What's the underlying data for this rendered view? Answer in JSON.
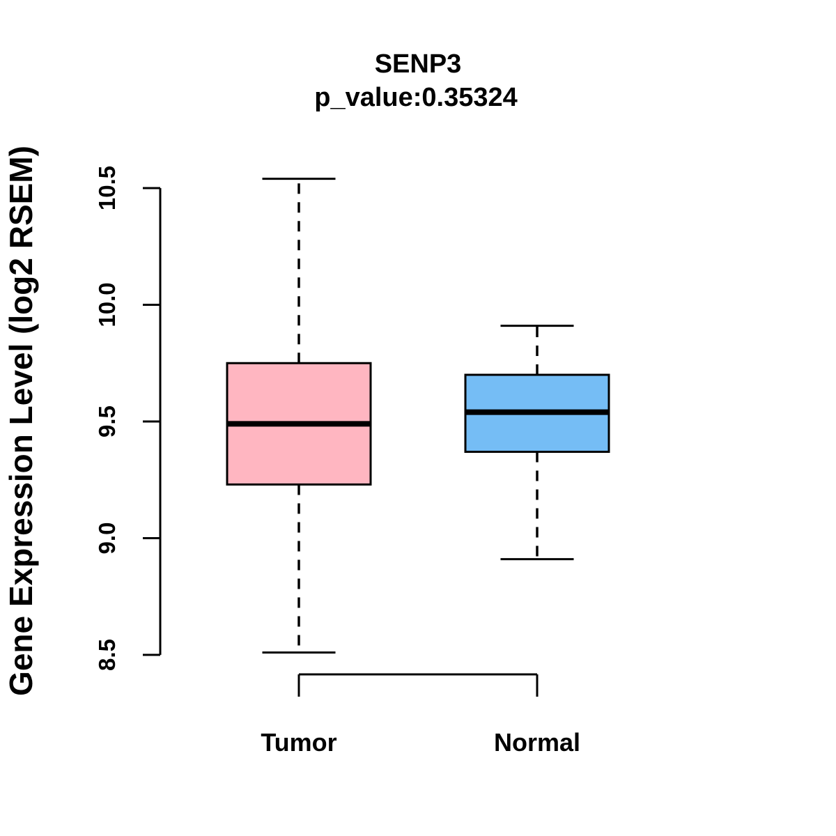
{
  "chart_data": {
    "type": "boxplot",
    "title": "SENP3",
    "subtitle": "p_value:0.35324",
    "ylabel": "Gene Expression Level (log2 RSEM)",
    "xlabel": "",
    "ylim": [
      8.5,
      10.5
    ],
    "yticks": [
      8.5,
      9.0,
      9.5,
      10.0,
      10.5
    ],
    "ytick_labels": [
      "8.5",
      "9.0",
      "9.5",
      "10.0",
      "10.5"
    ],
    "grid": false,
    "legend": "none",
    "whisker_style": "dashed",
    "groups": [
      {
        "label": "Tumor",
        "fill_color": "#FFB6C1",
        "stats": {
          "whisker_low": 8.51,
          "q1": 9.23,
          "median": 9.49,
          "q3": 9.75,
          "whisker_high": 10.54
        }
      },
      {
        "label": "Normal",
        "fill_color": "#75BDF5",
        "stats": {
          "whisker_low": 8.91,
          "q1": 9.37,
          "median": 9.54,
          "q3": 9.7,
          "whisker_high": 9.91
        }
      }
    ],
    "colors": {
      "box_border": "#000000",
      "median_line": "#000000",
      "axis": "#000000",
      "text": "#000000",
      "background": "#FFFFFF"
    }
  }
}
